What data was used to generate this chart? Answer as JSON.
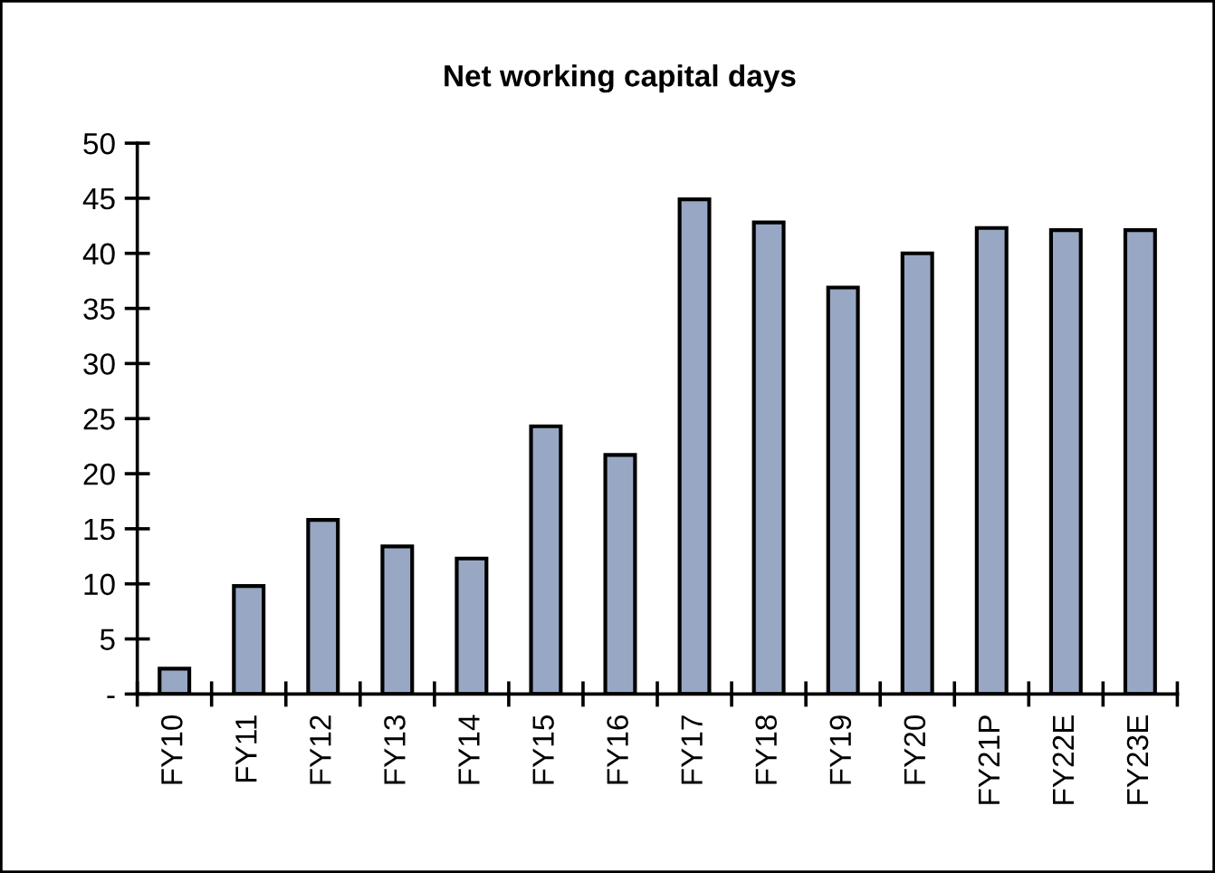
{
  "chart_data": {
    "type": "bar",
    "title": "Net working capital days",
    "categories": [
      "FY10",
      "FY11",
      "FY12",
      "FY13",
      "FY14",
      "FY15",
      "FY16",
      "FY17",
      "FY18",
      "FY19",
      "FY20",
      "FY21P",
      "FY22E",
      "FY23E"
    ],
    "values": [
      2.3,
      9.8,
      15.8,
      13.4,
      12.3,
      24.3,
      21.7,
      44.9,
      42.8,
      36.9,
      40.0,
      42.3,
      42.1,
      42.1
    ],
    "color": "#98a8c4",
    "ylim": [
      0,
      50
    ],
    "yticks": [
      {
        "value": 0,
        "label": "-"
      },
      5,
      10,
      15,
      20,
      25,
      30,
      35,
      40,
      45,
      50
    ],
    "grid": false,
    "legend": false
  }
}
